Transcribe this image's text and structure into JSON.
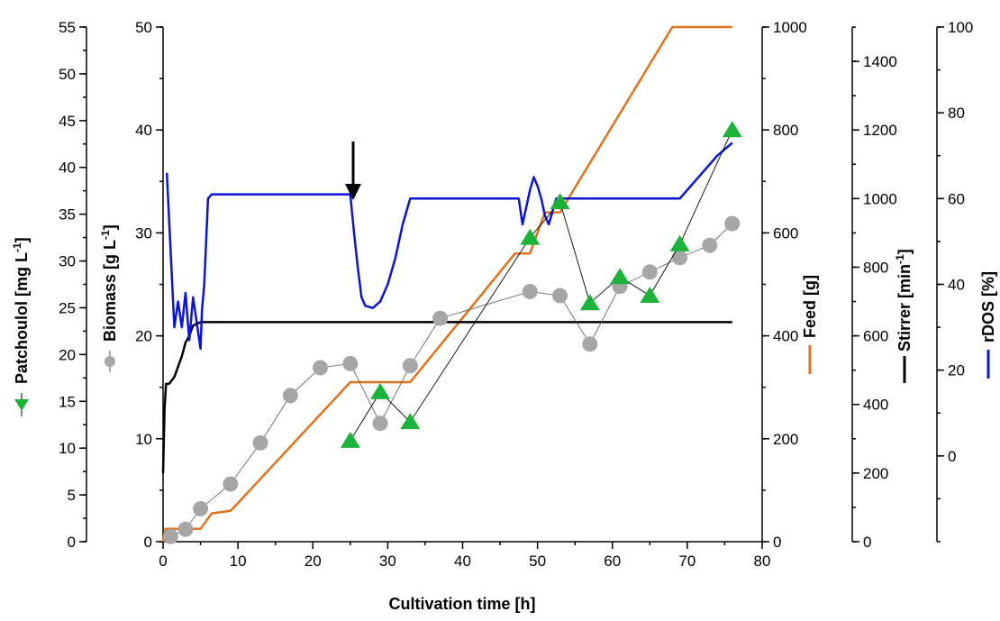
{
  "chart_data": {
    "type": "line",
    "xlabel": "Cultivation time [h]",
    "x_ticks": [
      "0",
      "10",
      "20",
      "30",
      "40",
      "50",
      "60",
      "70",
      "80"
    ],
    "xlim": [
      0,
      80
    ],
    "axes": {
      "patchoulol": {
        "label_main": "Patchoulol [mg L",
        "label_sup": "-1",
        "label_end": "]",
        "ylim": [
          0,
          55
        ],
        "ticks": [
          "0",
          "5",
          "10",
          "15",
          "20",
          "25",
          "30",
          "35",
          "40",
          "45",
          "50",
          "55"
        ]
      },
      "biomass": {
        "label_main": "Biomass [g L",
        "label_sup": "-1",
        "label_end": "]",
        "ylim": [
          0,
          50
        ],
        "ticks": [
          "0",
          "10",
          "20",
          "30",
          "40",
          "50"
        ]
      },
      "feed": {
        "label": "Feed [g]",
        "ylim": [
          0,
          1000
        ],
        "ticks": [
          "0",
          "200",
          "400",
          "600",
          "800",
          "1000"
        ]
      },
      "stirrer": {
        "label_main": "Stirrer [min",
        "label_sup": "-1",
        "label_end": "]",
        "ylim": [
          0,
          1500
        ],
        "ticks": [
          "0",
          "200",
          "400",
          "600",
          "800",
          "1000",
          "1200",
          "1400"
        ]
      },
      "rdos": {
        "label": "rDOS [%]",
        "ylim": [
          -20,
          100
        ],
        "ticks": [
          "0",
          "20",
          "40",
          "60",
          "80",
          "100"
        ]
      }
    },
    "series": [
      {
        "name": "Patchoulol",
        "axis": "patchoulol",
        "marker": "triangle",
        "color": "#1db33a",
        "x": [
          25,
          29,
          33,
          49,
          53,
          57,
          61,
          65,
          69,
          76
        ],
        "y": [
          10.8,
          16,
          12.8,
          32.5,
          36.3,
          25.5,
          28.3,
          26.3,
          31.8,
          44
        ]
      },
      {
        "name": "Biomass",
        "axis": "biomass",
        "marker": "circle",
        "color": "#a6a6a6",
        "x": [
          1,
          3,
          5,
          9,
          13,
          17,
          21,
          25,
          29,
          33,
          37,
          49,
          53,
          57,
          61,
          65,
          69,
          73,
          76
        ],
        "y": [
          0.5,
          1.2,
          3.2,
          5.6,
          9.6,
          14.2,
          16.9,
          17.3,
          11.5,
          17.1,
          21.7,
          24.3,
          23.9,
          19.2,
          24.8,
          26.2,
          27.6,
          28.8,
          30.9
        ]
      },
      {
        "name": "Feed",
        "axis": "feed",
        "color": "#e0721c",
        "x": [
          0,
          0.3,
          5,
          6,
          6.5,
          9,
          10,
          25,
          33,
          47,
          49,
          51,
          53,
          68,
          76
        ],
        "y": [
          0,
          25,
          25,
          45,
          55,
          60,
          75,
          310,
          310,
          560,
          560,
          640,
          640,
          1000,
          1000
        ]
      },
      {
        "name": "Stirrer",
        "axis": "stirrer",
        "color": "#000000",
        "x": [
          0,
          0.2,
          0.4,
          0.8,
          1.5,
          2.5,
          3.0,
          3.5,
          4.0,
          5.0,
          76
        ],
        "y": [
          200,
          390,
          460,
          460,
          480,
          540,
          580,
          600,
          630,
          640,
          640
        ]
      },
      {
        "name": "rDOS",
        "axis": "rdos",
        "color": "#0b14d4",
        "x": [
          0.5,
          1.5,
          2.0,
          2.5,
          3.0,
          3.5,
          4.0,
          4.5,
          5.0,
          5.2,
          5.5,
          6.0,
          6.5,
          25,
          25.5,
          26,
          26.5,
          27,
          28,
          29,
          30,
          31,
          32,
          33,
          47.5,
          48,
          49,
          49.5,
          50,
          50.5,
          51,
          51.5,
          52,
          52.5,
          53,
          53.5,
          69,
          72,
          74,
          76
        ],
        "y": [
          66,
          30,
          36,
          30,
          38,
          27,
          37,
          31,
          25,
          34,
          40,
          60,
          61,
          61,
          52,
          44,
          37,
          35,
          34.5,
          36,
          40,
          46,
          54,
          60,
          60,
          54,
          62,
          65,
          63,
          60,
          56,
          54,
          57,
          60,
          60,
          60,
          60,
          66,
          70,
          73
        ]
      }
    ]
  }
}
